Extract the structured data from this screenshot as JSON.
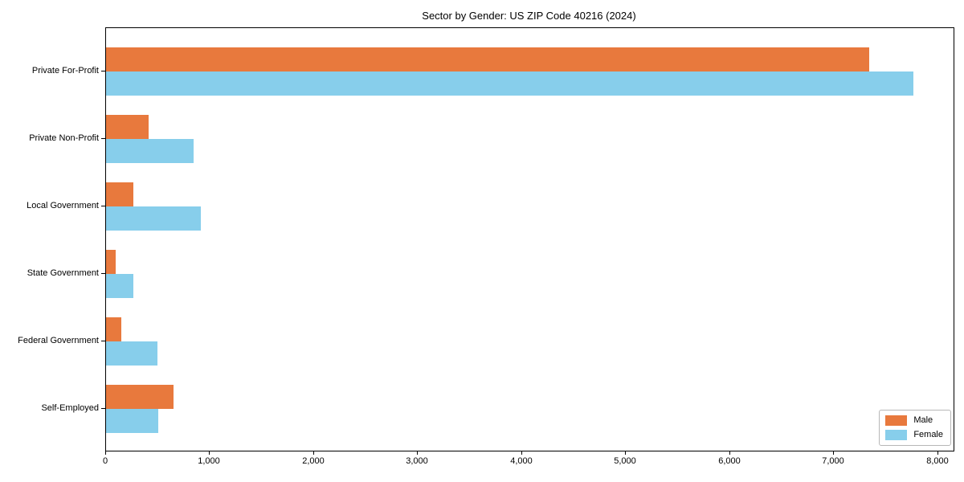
{
  "chart_data": {
    "type": "bar",
    "orientation": "horizontal",
    "title": "Sector by Gender: US ZIP Code 40216 (2024)",
    "categories": [
      "Private For-Profit",
      "Private Non-Profit",
      "Local Government",
      "State Government",
      "Federal Government",
      "Self-Employed"
    ],
    "series": [
      {
        "name": "Male",
        "color": "#E8793D",
        "values": [
          7335,
          410,
          265,
          90,
          145,
          650
        ]
      },
      {
        "name": "Female",
        "color": "#87CEEB",
        "values": [
          7760,
          840,
          910,
          265,
          495,
          500
        ]
      }
    ],
    "xlabel": "",
    "ylabel": "",
    "xlim": [
      0,
      8150
    ],
    "xtick_values": [
      0,
      1000,
      2000,
      3000,
      4000,
      5000,
      6000,
      7000,
      8000
    ],
    "xtick_labels": [
      "0",
      "1,000",
      "2,000",
      "3,000",
      "4,000",
      "5,000",
      "6,000",
      "7,000",
      "8,000"
    ],
    "grid": false,
    "legend_position": "lower right",
    "background_color": "#FFFFFF",
    "axis_color": "#000000"
  }
}
